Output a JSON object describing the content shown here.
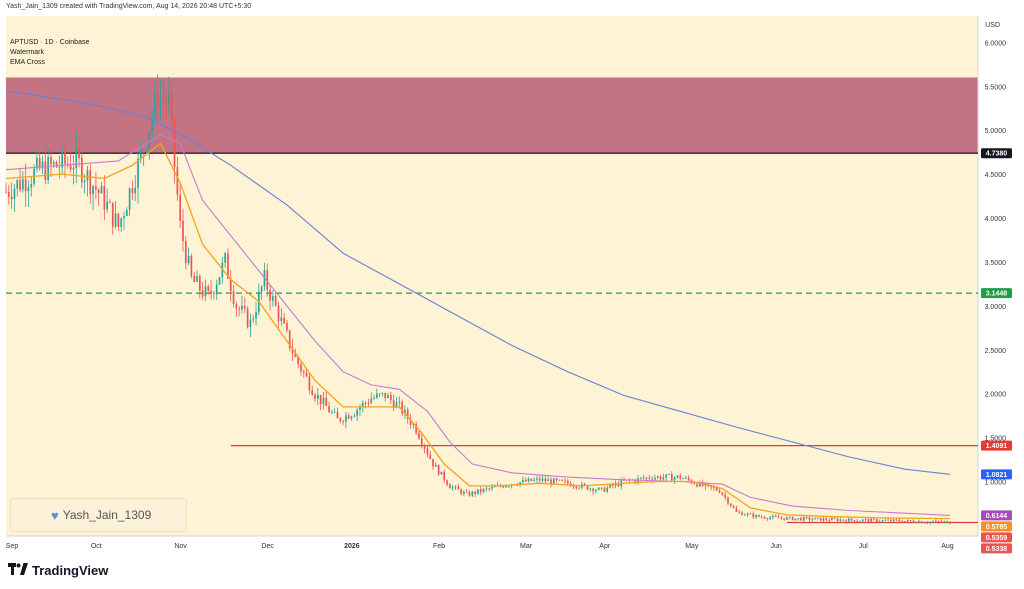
{
  "header": {
    "text": "Yash_Jain_1309 created with TradingView.com, Aug 14, 2026 20:48 UTC+5:30"
  },
  "legend": {
    "symbol": "APTUSD · 1D · Coinbase",
    "line2": "Watermark",
    "line3": "EMA Cross"
  },
  "watermark": {
    "icon": "blue-heart-icon",
    "text": "Yash_Jain_1309"
  },
  "footer": {
    "brand": "TradingView",
    "logo_icon": "tradingview-logo-icon"
  },
  "chart_data": {
    "type": "candlestick",
    "symbol": "APTUSD",
    "interval": "1D",
    "exchange": "Coinbase",
    "currency_label": "USD",
    "x_labels": [
      "Sep",
      "Oct",
      "Nov",
      "Dec",
      "2026",
      "Feb",
      "Mar",
      "Apr",
      "May",
      "Jun",
      "Jul",
      "Aug"
    ],
    "y_ticks": [
      "6.0000",
      "5.5000",
      "5.0000",
      "4.5000",
      "4.0000",
      "3.5000",
      "3.0000",
      "2.5000",
      "2.0000",
      "1.5000",
      "1.0000"
    ],
    "ylim": [
      0.38,
      6.3
    ],
    "close_path": [
      [
        0,
        4.3
      ],
      [
        12,
        4.55
      ],
      [
        25,
        4.65
      ],
      [
        35,
        4.2
      ],
      [
        40,
        3.9
      ],
      [
        48,
        4.7
      ],
      [
        54,
        5.4
      ],
      [
        58,
        5.3
      ],
      [
        62,
        3.9
      ],
      [
        66,
        3.3
      ],
      [
        72,
        3.1
      ],
      [
        78,
        3.5
      ],
      [
        82,
        3.0
      ],
      [
        87,
        2.8
      ],
      [
        92,
        3.3
      ],
      [
        97,
        2.9
      ],
      [
        103,
        2.4
      ],
      [
        110,
        2.0
      ],
      [
        118,
        1.7
      ],
      [
        124,
        1.8
      ],
      [
        130,
        1.95
      ],
      [
        135,
        1.98
      ],
      [
        140,
        1.85
      ],
      [
        146,
        1.6
      ],
      [
        152,
        1.2
      ],
      [
        158,
        0.95
      ],
      [
        164,
        0.85
      ],
      [
        170,
        0.9
      ],
      [
        180,
        0.98
      ],
      [
        190,
        1.02
      ],
      [
        200,
        0.98
      ],
      [
        212,
        0.9
      ],
      [
        220,
        1.0
      ],
      [
        230,
        1.05
      ],
      [
        240,
        1.05
      ],
      [
        248,
        0.95
      ],
      [
        254,
        0.9
      ],
      [
        260,
        0.65
      ],
      [
        268,
        0.6
      ],
      [
        278,
        0.58
      ],
      [
        290,
        0.57
      ],
      [
        305,
        0.56
      ],
      [
        320,
        0.55
      ],
      [
        336,
        0.535
      ]
    ],
    "ema_fast": [
      [
        0,
        4.45
      ],
      [
        20,
        4.5
      ],
      [
        35,
        4.45
      ],
      [
        45,
        4.6
      ],
      [
        55,
        4.85
      ],
      [
        62,
        4.4
      ],
      [
        70,
        3.7
      ],
      [
        80,
        3.3
      ],
      [
        90,
        3.05
      ],
      [
        100,
        2.6
      ],
      [
        110,
        2.15
      ],
      [
        120,
        1.85
      ],
      [
        130,
        1.85
      ],
      [
        140,
        1.85
      ],
      [
        148,
        1.55
      ],
      [
        156,
        1.2
      ],
      [
        165,
        0.95
      ],
      [
        175,
        0.95
      ],
      [
        190,
        0.98
      ],
      [
        205,
        0.95
      ],
      [
        220,
        0.98
      ],
      [
        232,
        1.0
      ],
      [
        244,
        1.0
      ],
      [
        255,
        0.92
      ],
      [
        265,
        0.7
      ],
      [
        278,
        0.62
      ],
      [
        295,
        0.6
      ],
      [
        315,
        0.585
      ],
      [
        336,
        0.5785
      ]
    ],
    "ema_mid": [
      [
        0,
        4.55
      ],
      [
        20,
        4.6
      ],
      [
        40,
        4.65
      ],
      [
        55,
        4.95
      ],
      [
        62,
        4.85
      ],
      [
        70,
        4.2
      ],
      [
        80,
        3.8
      ],
      [
        90,
        3.4
      ],
      [
        100,
        3.0
      ],
      [
        110,
        2.6
      ],
      [
        120,
        2.25
      ],
      [
        130,
        2.1
      ],
      [
        140,
        2.05
      ],
      [
        150,
        1.8
      ],
      [
        158,
        1.45
      ],
      [
        166,
        1.2
      ],
      [
        180,
        1.1
      ],
      [
        200,
        1.05
      ],
      [
        220,
        1.02
      ],
      [
        240,
        1.0
      ],
      [
        255,
        0.97
      ],
      [
        265,
        0.82
      ],
      [
        280,
        0.72
      ],
      [
        300,
        0.67
      ],
      [
        320,
        0.64
      ],
      [
        336,
        0.6144
      ]
    ],
    "ema_slow": [
      [
        0,
        5.45
      ],
      [
        30,
        5.3
      ],
      [
        50,
        5.15
      ],
      [
        65,
        4.9
      ],
      [
        80,
        4.6
      ],
      [
        100,
        4.15
      ],
      [
        120,
        3.6
      ],
      [
        140,
        3.25
      ],
      [
        160,
        2.9
      ],
      [
        180,
        2.55
      ],
      [
        200,
        2.25
      ],
      [
        220,
        1.98
      ],
      [
        240,
        1.8
      ],
      [
        260,
        1.62
      ],
      [
        280,
        1.45
      ],
      [
        300,
        1.28
      ],
      [
        320,
        1.14
      ],
      [
        336,
        1.0821
      ]
    ],
    "resistance_zone": [
      4.738,
      5.6
    ],
    "horizontal_levels": [
      {
        "value": 4.738,
        "label": "4.7380",
        "style": "solid",
        "color": "#000000"
      },
      {
        "value": 3.1448,
        "label": "3.1448",
        "style": "dashed",
        "color": "#1e9e4a"
      },
      {
        "value": 1.4091,
        "label": "1.4091",
        "style": "solid",
        "color": "#e53935"
      },
      {
        "value": 0.5338,
        "label": "0.5338",
        "style": "solid",
        "color": "#e53935"
      }
    ],
    "price_badges": [
      {
        "value": 1.0821,
        "label": "1.0821",
        "color": "#2962ff"
      },
      {
        "value": 0.6144,
        "label": "0.6144",
        "color": "#ab47bc"
      },
      {
        "value": 0.5785,
        "label": "0.5785",
        "color": "#f7931a"
      },
      {
        "value": 0.5359,
        "label": "0.5359",
        "color": "#ef5350"
      },
      {
        "value": 0.5338,
        "label": "0.5338",
        "color": "#ef5350"
      }
    ],
    "colors": {
      "background": "#fff3d6",
      "zone": "#c27485",
      "up": "#26a69a",
      "down": "#ef5350",
      "ema_fast": "#f7a21b",
      "ema_mid": "#c77dce",
      "ema_slow": "#6b7fd6"
    }
  }
}
